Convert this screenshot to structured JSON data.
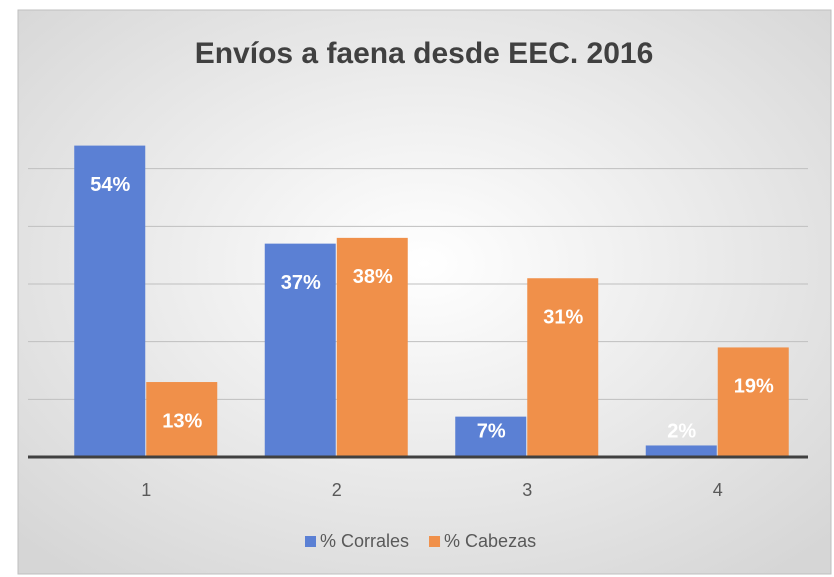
{
  "chart_data": {
    "type": "bar",
    "title": "Envíos a faena desde EEC. 2016",
    "categories": [
      "1",
      "2",
      "3",
      "4"
    ],
    "series": [
      {
        "name": "% Corrales",
        "color": "#5b80d4",
        "values": [
          54,
          37,
          7,
          2
        ],
        "value_labels": [
          "54%",
          "37%",
          "7%",
          "2%"
        ]
      },
      {
        "name": "% Cabezas",
        "color": "#f0904a",
        "values": [
          13,
          38,
          31,
          19
        ],
        "value_labels": [
          "13%",
          "38%",
          "31%",
          "19%"
        ]
      }
    ],
    "ylim": [
      0,
      60
    ],
    "yticks": [
      0,
      10,
      20,
      30,
      40,
      50
    ],
    "grid": true,
    "legend": "bottom"
  }
}
